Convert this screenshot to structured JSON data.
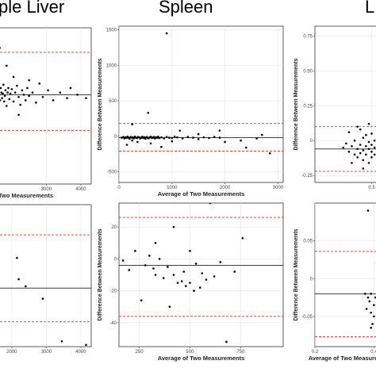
{
  "headers": {
    "left": "ple Liver",
    "middle": "Spleen",
    "right": "L"
  },
  "chart_data": [
    {
      "id": "whole-liver-top",
      "type": "scatter",
      "title": "ple Liver",
      "xlabel": "Two Measurements",
      "ylabel": "",
      "xlim": [
        1200,
        4300
      ],
      "ylim": [
        -280,
        420
      ],
      "x_ticks": [
        3000,
        4000
      ],
      "y_ticks": [],
      "mean_line": 120,
      "limits": [
        310,
        -40
      ],
      "grid": true,
      "points": [
        [
          1250,
          140
        ],
        [
          1300,
          110
        ],
        [
          1320,
          165
        ],
        [
          1350,
          90
        ],
        [
          1380,
          150
        ],
        [
          1400,
          130
        ],
        [
          1420,
          60
        ],
        [
          1440,
          175
        ],
        [
          1460,
          120
        ],
        [
          1480,
          100
        ],
        [
          1500,
          145
        ],
        [
          1520,
          85
        ],
        [
          1540,
          130
        ],
        [
          1560,
          160
        ],
        [
          1580,
          110
        ],
        [
          1600,
          75
        ],
        [
          1620,
          140
        ],
        [
          1640,
          120
        ],
        [
          1660,
          95
        ],
        [
          1680,
          150
        ],
        [
          1700,
          130
        ],
        [
          1720,
          105
        ],
        [
          1740,
          125
        ],
        [
          1760,
          165
        ],
        [
          1780,
          90
        ],
        [
          1800,
          115
        ],
        [
          1820,
          140
        ],
        [
          1850,
          70
        ],
        [
          1880,
          130
        ],
        [
          1900,
          150
        ],
        [
          1930,
          100
        ],
        [
          1960,
          125
        ],
        [
          2000,
          145
        ],
        [
          2050,
          90
        ],
        [
          2100,
          130
        ],
        [
          2150,
          160
        ],
        [
          2200,
          110
        ],
        [
          2250,
          75
        ],
        [
          2300,
          140
        ],
        [
          2350,
          120
        ],
        [
          2400,
          95
        ],
        [
          2450,
          150
        ],
        [
          2500,
          115
        ],
        [
          2600,
          130
        ],
        [
          2700,
          85
        ],
        [
          2800,
          170
        ],
        [
          2900,
          110
        ],
        [
          3050,
          140
        ],
        [
          3200,
          95
        ],
        [
          3400,
          130
        ],
        [
          3600,
          105
        ],
        [
          3700,
          150
        ],
        [
          3900,
          120
        ],
        [
          4150,
          105
        ],
        [
          1650,
          330
        ],
        [
          1850,
          250
        ],
        [
          2050,
          200
        ],
        [
          2500,
          185
        ],
        [
          1450,
          20
        ],
        [
          2200,
          30
        ]
      ]
    },
    {
      "id": "spleen-top",
      "type": "scatter",
      "title": "Spleen",
      "xlabel": "Average of Two Measurements",
      "ylabel": "Difference Between Measurements",
      "xlim": [
        0,
        3100
      ],
      "ylim": [
        -650,
        1550
      ],
      "x_ticks": [
        0,
        1000,
        2000,
        3000
      ],
      "y_ticks": [
        -500,
        0,
        500,
        1000,
        1500
      ],
      "mean_line": -20,
      "limits": [
        180,
        -210
      ],
      "grid": true,
      "points": [
        [
          50,
          -20
        ],
        [
          80,
          -10
        ],
        [
          100,
          -30
        ],
        [
          120,
          -15
        ],
        [
          140,
          -25
        ],
        [
          160,
          -5
        ],
        [
          180,
          -20
        ],
        [
          200,
          -35
        ],
        [
          220,
          -10
        ],
        [
          240,
          -20
        ],
        [
          260,
          -15
        ],
        [
          280,
          -30
        ],
        [
          300,
          -5
        ],
        [
          320,
          -20
        ],
        [
          340,
          -25
        ],
        [
          360,
          -10
        ],
        [
          380,
          -15
        ],
        [
          400,
          -30
        ],
        [
          420,
          -20
        ],
        [
          440,
          -5
        ],
        [
          460,
          -25
        ],
        [
          480,
          -15
        ],
        [
          500,
          -35
        ],
        [
          520,
          -10
        ],
        [
          540,
          -20
        ],
        [
          560,
          -30
        ],
        [
          580,
          -15
        ],
        [
          600,
          -5
        ],
        [
          620,
          -25
        ],
        [
          640,
          -20
        ],
        [
          660,
          -10
        ],
        [
          680,
          -30
        ],
        [
          700,
          -15
        ],
        [
          720,
          -20
        ],
        [
          740,
          -5
        ],
        [
          760,
          -25
        ],
        [
          800,
          -15
        ],
        [
          850,
          -30
        ],
        [
          900,
          -10
        ],
        [
          950,
          -20
        ],
        [
          1000,
          -25
        ],
        [
          1050,
          -5
        ],
        [
          1100,
          -15
        ],
        [
          1200,
          -30
        ],
        [
          1300,
          -10
        ],
        [
          1400,
          -20
        ],
        [
          1500,
          -40
        ],
        [
          1600,
          -15
        ],
        [
          1700,
          -25
        ],
        [
          1800,
          -10
        ],
        [
          1900,
          -20
        ],
        [
          2000,
          -80
        ],
        [
          2300,
          -60
        ],
        [
          2600,
          -30
        ],
        [
          150,
          -120
        ],
        [
          250,
          -60
        ],
        [
          350,
          -80
        ],
        [
          600,
          -100
        ],
        [
          800,
          -150
        ],
        [
          1000,
          -70
        ],
        [
          1900,
          80
        ],
        [
          2400,
          -160
        ],
        [
          2850,
          -240
        ],
        [
          900,
          1450
        ],
        [
          550,
          330
        ],
        [
          250,
          170
        ],
        [
          1150,
          80
        ],
        [
          1500,
          30
        ],
        [
          2550,
          -680
        ],
        [
          2700,
          20
        ]
      ]
    },
    {
      "id": "right-top",
      "type": "scatter",
      "title": "L",
      "xlabel": "",
      "ylabel": "Difference Between Measurements",
      "xlim": [
        0.3,
        0.56
      ],
      "ylim": [
        -0.3,
        0.82
      ],
      "x_ticks": [
        0.5
      ],
      "y_ticks": [
        -0.25,
        0.0,
        0.25,
        0.5,
        0.75
      ],
      "mean_line": -0.06,
      "limits": [
        0.1,
        -0.22
      ],
      "grid": true,
      "points": [
        [
          0.4,
          -0.05
        ],
        [
          0.41,
          -0.02
        ],
        [
          0.42,
          -0.08
        ],
        [
          0.43,
          -0.04
        ],
        [
          0.44,
          -0.1
        ],
        [
          0.44,
          0.0
        ],
        [
          0.45,
          -0.06
        ],
        [
          0.45,
          -0.12
        ],
        [
          0.46,
          -0.03
        ],
        [
          0.46,
          -0.09
        ],
        [
          0.47,
          0.02
        ],
        [
          0.47,
          -0.07
        ],
        [
          0.47,
          -0.14
        ],
        [
          0.48,
          -0.04
        ],
        [
          0.48,
          -0.1
        ],
        [
          0.48,
          0.04
        ],
        [
          0.49,
          -0.06
        ],
        [
          0.49,
          -0.01
        ],
        [
          0.49,
          -0.16
        ],
        [
          0.5,
          -0.08
        ],
        [
          0.5,
          -0.03
        ],
        [
          0.5,
          0.05
        ],
        [
          0.5,
          -0.12
        ],
        [
          0.51,
          -0.05
        ],
        [
          0.51,
          0.0
        ],
        [
          0.51,
          -0.1
        ],
        [
          0.52,
          -0.07
        ],
        [
          0.52,
          0.03
        ],
        [
          0.52,
          -0.14
        ],
        [
          0.53,
          -0.04
        ],
        [
          0.53,
          -0.09
        ],
        [
          0.54,
          0.01
        ],
        [
          0.54,
          -0.06
        ],
        [
          0.55,
          -0.11
        ],
        [
          0.55,
          -0.02
        ],
        [
          0.42,
          0.06
        ],
        [
          0.45,
          0.1
        ],
        [
          0.47,
          -0.2
        ],
        [
          0.49,
          0.12
        ],
        [
          0.52,
          -0.18
        ],
        [
          0.54,
          0.08
        ],
        [
          0.43,
          -0.16
        ],
        [
          0.46,
          0.08
        ],
        [
          0.53,
          0.12
        ],
        [
          0.535,
          0.37
        ],
        [
          0.555,
          0.47
        ]
      ]
    },
    {
      "id": "whole-liver-bottom",
      "type": "scatter",
      "xlabel": "",
      "ylabel": "",
      "xlim": [
        1200,
        4300
      ],
      "ylim": [
        -200,
        200
      ],
      "x_ticks": [
        2000,
        3000,
        4000
      ],
      "y_ticks": [],
      "mean_line": -35,
      "limits": [
        115,
        -130
      ],
      "grid": true,
      "points": [
        [
          1230,
          25
        ],
        [
          1240,
          -20
        ],
        [
          1260,
          -10
        ],
        [
          1300,
          -40
        ],
        [
          2150,
          50
        ],
        [
          2200,
          -10
        ],
        [
          2400,
          -30
        ],
        [
          2900,
          -65
        ],
        [
          1500,
          -150
        ],
        [
          3450,
          -185
        ],
        [
          4150,
          -195
        ]
      ]
    },
    {
      "id": "spleen-bottom",
      "type": "scatter",
      "xlabel": "Average of Two Measurements",
      "ylabel": "Difference Between Measurements",
      "xlim": [
        150,
        960
      ],
      "ylim": [
        -55,
        35
      ],
      "x_ticks": [
        250,
        500,
        750
      ],
      "y_ticks": [
        -40,
        -20,
        0,
        20
      ],
      "mean_line": -4,
      "limits": [
        26,
        -36
      ],
      "grid": true,
      "points": [
        [
          170,
          -1
        ],
        [
          200,
          -7
        ],
        [
          230,
          5
        ],
        [
          260,
          -26
        ],
        [
          280,
          -4
        ],
        [
          300,
          2
        ],
        [
          320,
          -6
        ],
        [
          330,
          -10
        ],
        [
          350,
          0
        ],
        [
          370,
          -12
        ],
        [
          390,
          -5
        ],
        [
          400,
          -30
        ],
        [
          420,
          -10
        ],
        [
          440,
          -15
        ],
        [
          460,
          -14
        ],
        [
          470,
          -8
        ],
        [
          480,
          -17
        ],
        [
          500,
          5
        ],
        [
          520,
          -20
        ],
        [
          530,
          -3
        ],
        [
          550,
          -18
        ],
        [
          560,
          -9
        ],
        [
          580,
          -13
        ],
        [
          600,
          35
        ],
        [
          620,
          -11
        ],
        [
          650,
          -2
        ],
        [
          680,
          -52
        ],
        [
          720,
          -8
        ],
        [
          760,
          13
        ],
        [
          420,
          20
        ],
        [
          330,
          10
        ],
        [
          500,
          -15
        ]
      ]
    },
    {
      "id": "right-bottom",
      "type": "scatter",
      "xlabel": "Average of Two Measurements",
      "ylabel": "Difference Between Measurements",
      "xlim": [
        0.2,
        0.45
      ],
      "ylim": [
        -0.09,
        0.1
      ],
      "x_ticks": [
        0.2,
        0.4
      ],
      "y_ticks": [
        -0.05,
        0.0,
        0.05
      ],
      "mean_line": -0.02,
      "limits": [
        0.036,
        -0.077
      ],
      "grid": true,
      "points": [
        [
          0.37,
          -0.02
        ],
        [
          0.375,
          -0.04
        ],
        [
          0.38,
          -0.025
        ],
        [
          0.385,
          -0.03
        ],
        [
          0.39,
          -0.045
        ],
        [
          0.39,
          -0.02
        ],
        [
          0.395,
          -0.06
        ],
        [
          0.4,
          -0.035
        ],
        [
          0.4,
          -0.05
        ],
        [
          0.405,
          -0.025
        ],
        [
          0.41,
          -0.04
        ],
        [
          0.41,
          0.02
        ],
        [
          0.415,
          -0.055
        ],
        [
          0.42,
          -0.03
        ],
        [
          0.42,
          0.0
        ],
        [
          0.425,
          -0.045
        ],
        [
          0.43,
          -0.02
        ],
        [
          0.43,
          -0.005
        ],
        [
          0.435,
          -0.035
        ],
        [
          0.44,
          -0.01
        ],
        [
          0.38,
          0.09
        ],
        [
          0.41,
          -0.06
        ],
        [
          0.43,
          0.01
        ],
        [
          0.44,
          -0.04
        ],
        [
          0.42,
          -0.015
        ],
        [
          0.39,
          -0.065
        ]
      ]
    }
  ]
}
